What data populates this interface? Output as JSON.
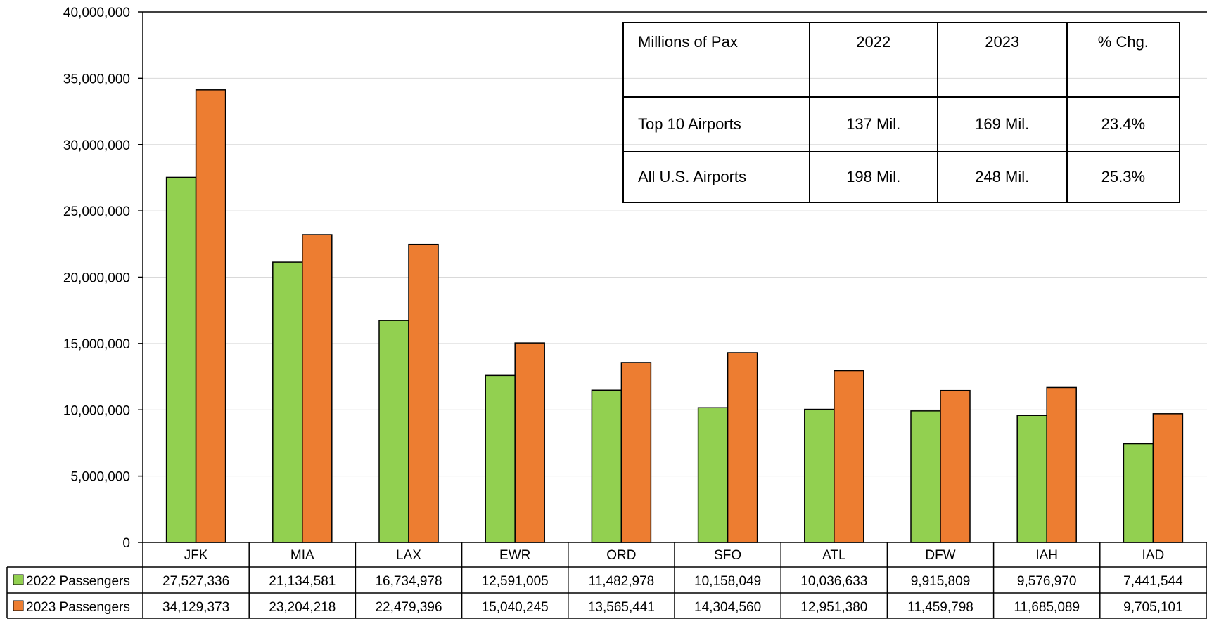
{
  "colors": {
    "series_2022": "#92d050",
    "series_2023": "#ed7d31",
    "grid": "#d9d9d9",
    "axis": "#000000"
  },
  "summary_table": {
    "headers": [
      "Millions of Pax",
      "2022",
      "2023",
      "% Chg."
    ],
    "rows": [
      [
        "Top 10 Airports",
        "137 Mil.",
        "169 Mil.",
        "23.4%"
      ],
      [
        "All U.S. Airports",
        "198 Mil.",
        "248 Mil.",
        "25.3%"
      ]
    ]
  },
  "chart_data": {
    "type": "bar",
    "categories": [
      "JFK",
      "MIA",
      "LAX",
      "EWR",
      "ORD",
      "SFO",
      "ATL",
      "DFW",
      "IAH",
      "IAD"
    ],
    "series": [
      {
        "name": "2022 Passengers",
        "color": "#92d050",
        "values": [
          27527336,
          21134581,
          16734978,
          12591005,
          11482978,
          10158049,
          10036633,
          9915809,
          9576970,
          7441544
        ],
        "labels": [
          "27,527,336",
          "21,134,581",
          "16,734,978",
          "12,591,005",
          "11,482,978",
          "10,158,049",
          "10,036,633",
          "9,915,809",
          "9,576,970",
          "7,441,544"
        ]
      },
      {
        "name": "2023 Passengers",
        "color": "#ed7d31",
        "values": [
          34129373,
          23204218,
          22479396,
          15040245,
          13565441,
          14304560,
          12951380,
          11459798,
          11685089,
          9705101
        ],
        "labels": [
          "34,129,373",
          "23,204,218",
          "22,479,396",
          "15,040,245",
          "13,565,441",
          "14,304,560",
          "12,951,380",
          "11,459,798",
          "11,685,089",
          "9,705,101"
        ]
      }
    ],
    "ylim": [
      0,
      40000000
    ],
    "yticks": [
      0,
      5000000,
      10000000,
      15000000,
      20000000,
      25000000,
      30000000,
      35000000,
      40000000
    ],
    "ytick_labels": [
      "0",
      "5,000,000",
      "10,000,000",
      "15,000,000",
      "20,000,000",
      "25,000,000",
      "30,000,000",
      "35,000,000",
      "40,000,000"
    ],
    "grid": true,
    "data_table_below": true
  }
}
